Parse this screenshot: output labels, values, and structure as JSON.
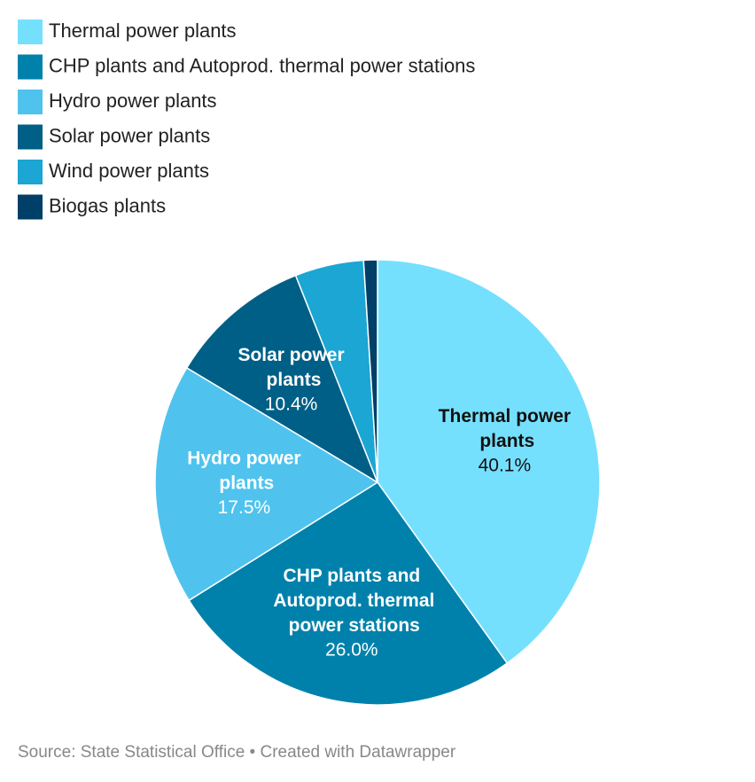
{
  "chart_data": {
    "type": "pie",
    "categories": [
      "Thermal power plants",
      "CHP plants and Autoprod. thermal power stations",
      "Hydro power plants",
      "Solar power plants",
      "Wind power plants",
      "Biogas plants"
    ],
    "values": [
      40.1,
      26.0,
      17.5,
      10.4,
      5.0,
      1.0
    ],
    "value_labels": [
      "40.1%",
      "26.0%",
      "17.5%",
      "10.4%",
      null,
      null
    ],
    "colors": [
      "#75e0fd",
      "#0081ab",
      "#4fc3ee",
      "#005f86",
      "#1ba6d3",
      "#003f68"
    ],
    "source": "Source: State Statistical Office • Created with Datawrapper"
  }
}
